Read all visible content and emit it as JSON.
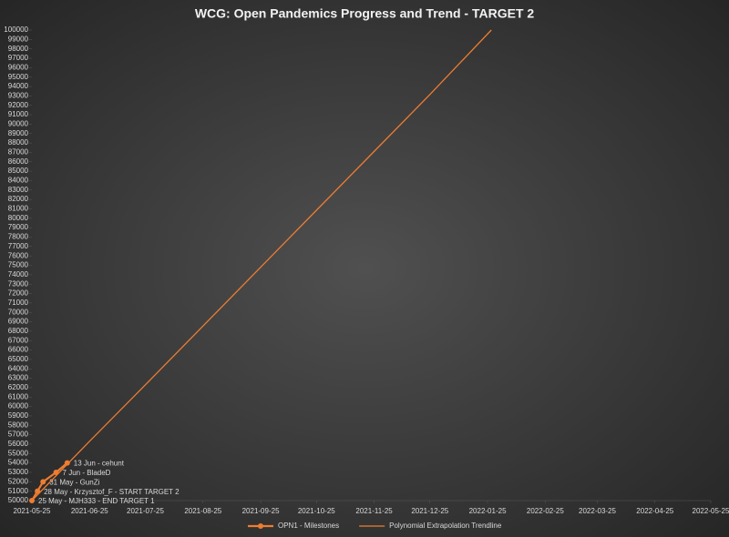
{
  "chart_data": {
    "type": "line",
    "title": "WCG: Open Pandemics Progress and Trend - TARGET 2",
    "series": [
      {
        "name": "OPN1 - Milestones",
        "color": "#ed7d31",
        "markers": true,
        "x": [
          "2021-05-25",
          "2021-05-28",
          "2021-05-31",
          "2021-06-07",
          "2021-06-13"
        ],
        "values": [
          50000,
          51000,
          52000,
          53000,
          54000
        ],
        "value_labels": [
          "25 May - MJH333 - END TARGET 1",
          "28 May - Krzysztof_F - START TARGET 2",
          "31 May - GunZi",
          "7 Jun - BladeD",
          "13 Jun - cehunt"
        ]
      },
      {
        "name": "Polynomial Extrapolation Trendline",
        "color": "#ed7d31",
        "markers": false,
        "x": [
          "2021-05-25",
          "2021-06-25",
          "2021-07-25",
          "2021-08-25",
          "2021-09-25",
          "2021-10-25",
          "2021-11-25",
          "2021-12-25",
          "2022-01-27"
        ],
        "values": [
          50000,
          56300,
          62300,
          68550,
          74800,
          80850,
          87100,
          93150,
          100000
        ]
      }
    ],
    "xlim": [
      "2021-05-25",
      "2022-05-25"
    ],
    "xticks": [
      "2021-05-25",
      "2021-06-25",
      "2021-07-25",
      "2021-08-25",
      "2021-09-25",
      "2021-10-25",
      "2021-11-25",
      "2021-12-25",
      "2022-01-25",
      "2022-02-25",
      "2022-03-25",
      "2022-04-25",
      "2022-05-25"
    ],
    "ylim": [
      50000,
      100000
    ],
    "yticks": [
      50000,
      51000,
      52000,
      53000,
      54000,
      55000,
      56000,
      57000,
      58000,
      59000,
      60000,
      61000,
      62000,
      63000,
      64000,
      65000,
      66000,
      67000,
      68000,
      69000,
      70000,
      71000,
      72000,
      73000,
      74000,
      75000,
      76000,
      77000,
      78000,
      79000,
      80000,
      81000,
      82000,
      83000,
      84000,
      85000,
      86000,
      87000,
      88000,
      89000,
      90000,
      91000,
      92000,
      93000,
      94000,
      95000,
      96000,
      97000,
      98000,
      99000,
      100000
    ],
    "legend": "bottom"
  }
}
